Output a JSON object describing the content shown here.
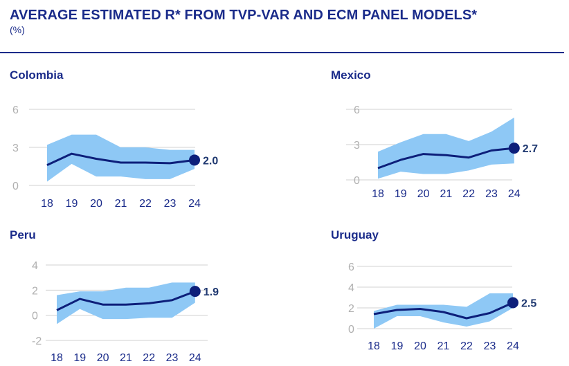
{
  "header": {
    "title": "AVERAGE ESTIMATED R* FROM TVP-VAR AND ECM PANEL MODELS*",
    "subtitle": "(%)"
  },
  "colors": {
    "band": "#8ec8f5",
    "line": "#0d1f7a",
    "grid": "#d0d0d0",
    "title": "#1a2b8a"
  },
  "chart_data": [
    {
      "type": "line",
      "title": "Colombia",
      "categories": [
        "18",
        "19",
        "20",
        "21",
        "22",
        "23",
        "24"
      ],
      "yticks": [
        "6",
        "3",
        "0"
      ],
      "ylim": [
        0,
        6
      ],
      "series": [
        {
          "name": "mean",
          "values": [
            1.6,
            2.5,
            2.1,
            1.8,
            1.8,
            1.75,
            2.0
          ]
        },
        {
          "name": "upper",
          "values": [
            3.2,
            4.0,
            4.0,
            3.0,
            3.0,
            2.8,
            2.8
          ]
        },
        {
          "name": "lower",
          "values": [
            0.3,
            1.7,
            0.7,
            0.7,
            0.5,
            0.5,
            1.3
          ]
        }
      ],
      "end_label": "2.0"
    },
    {
      "type": "line",
      "title": "Mexico",
      "categories": [
        "18",
        "19",
        "20",
        "21",
        "22",
        "23",
        "24"
      ],
      "yticks": [
        "6",
        "3",
        "0"
      ],
      "ylim": [
        0,
        6
      ],
      "series": [
        {
          "name": "mean",
          "values": [
            1.0,
            1.7,
            2.2,
            2.1,
            1.9,
            2.5,
            2.7
          ]
        },
        {
          "name": "upper",
          "values": [
            2.4,
            3.2,
            3.9,
            3.9,
            3.3,
            4.1,
            5.3
          ]
        },
        {
          "name": "lower",
          "values": [
            0.1,
            0.7,
            0.5,
            0.5,
            0.8,
            1.3,
            1.4
          ]
        }
      ],
      "end_label": "2.7"
    },
    {
      "type": "line",
      "title": "Peru",
      "categories": [
        "18",
        "19",
        "20",
        "21",
        "22",
        "23",
        "24"
      ],
      "yticks": [
        "4",
        "2",
        "0",
        "-2"
      ],
      "ylim": [
        -2,
        4
      ],
      "series": [
        {
          "name": "mean",
          "values": [
            0.4,
            1.3,
            0.85,
            0.85,
            0.95,
            1.2,
            1.9
          ]
        },
        {
          "name": "upper",
          "values": [
            1.6,
            1.9,
            1.9,
            2.2,
            2.2,
            2.6,
            2.6
          ]
        },
        {
          "name": "lower",
          "values": [
            -0.7,
            0.5,
            -0.3,
            -0.3,
            -0.2,
            -0.2,
            1.0
          ]
        }
      ],
      "end_label": "1.9"
    },
    {
      "type": "line",
      "title": "Uruguay",
      "categories": [
        "18",
        "19",
        "20",
        "21",
        "22",
        "23",
        "24"
      ],
      "yticks": [
        "6",
        "4",
        "2",
        "0"
      ],
      "ylim": [
        0,
        6
      ],
      "series": [
        {
          "name": "mean",
          "values": [
            1.4,
            1.8,
            1.9,
            1.6,
            1.0,
            1.5,
            2.5
          ]
        },
        {
          "name": "upper",
          "values": [
            1.7,
            2.3,
            2.3,
            2.3,
            2.1,
            3.4,
            3.4
          ]
        },
        {
          "name": "lower",
          "values": [
            0.0,
            1.2,
            1.2,
            0.6,
            0.2,
            0.7,
            2.0
          ]
        }
      ],
      "end_label": "2.5"
    }
  ]
}
